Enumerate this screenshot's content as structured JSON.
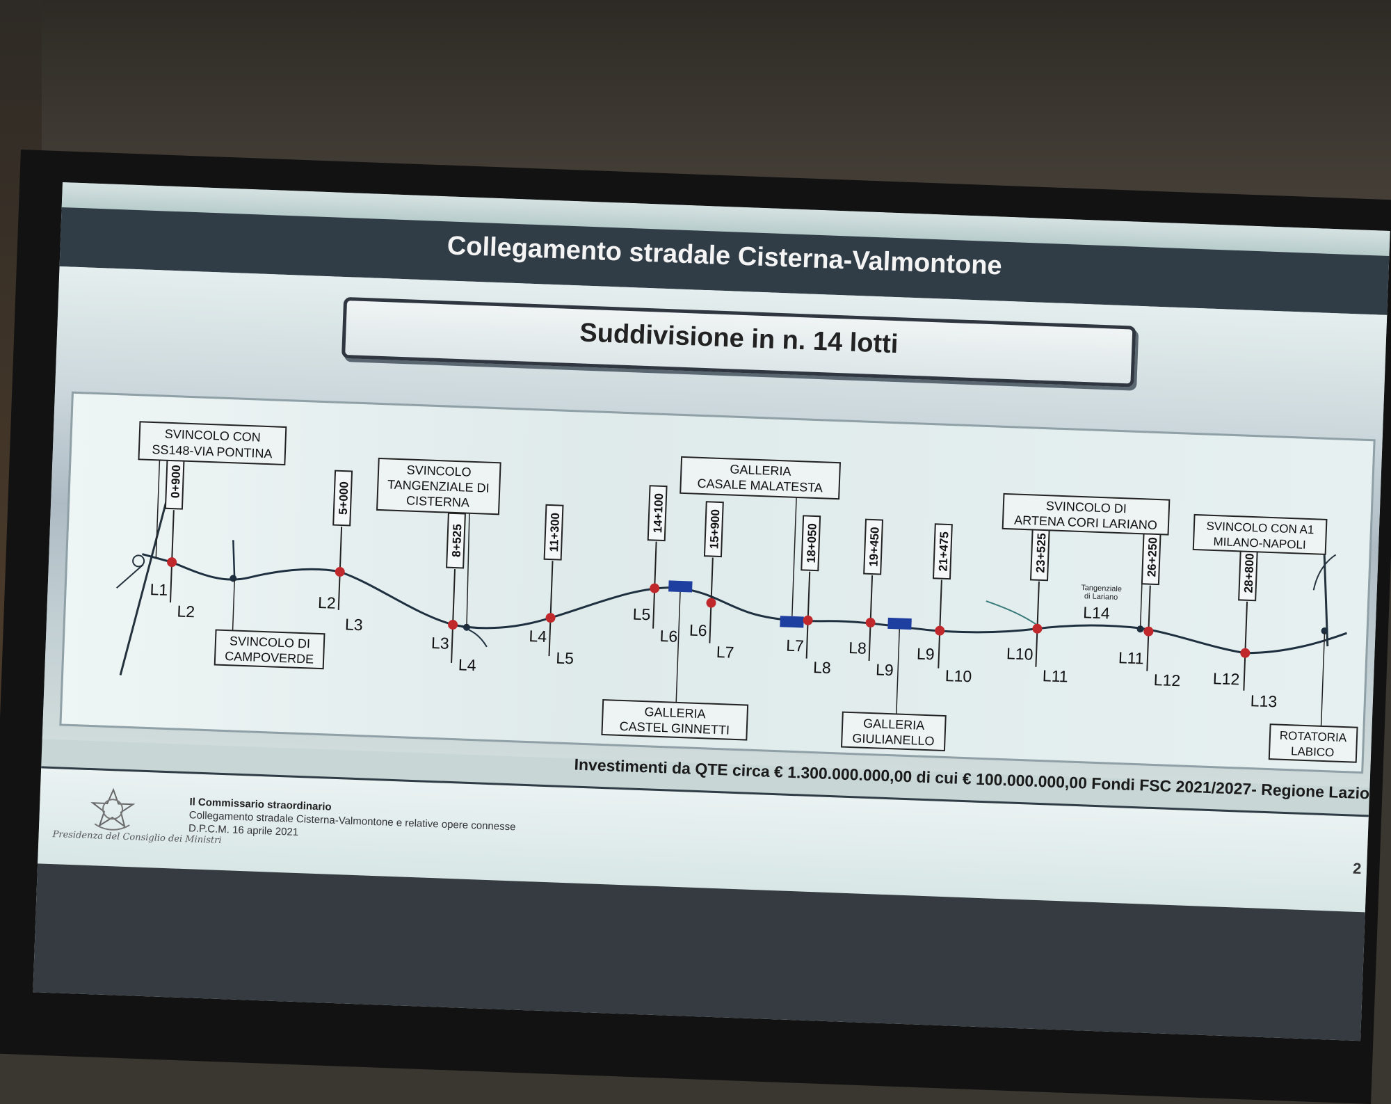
{
  "title": "Collegamento stradale Cisterna-Valmontone",
  "subtitle": "Suddivisione in n. 14 lotti",
  "investment": "Investimenti da QTE circa € 1.300.000.000,00 di cui € 100.000.000,00 Fondi FSC 2021/2027- Regione Lazio",
  "footer": {
    "line1": "Il Commissario straordinario",
    "line2": "Collegamento stradale Cisterna-Valmontone e relative opere connesse",
    "line3": "D.P.C.M. 16 aprile 2021",
    "page": "2",
    "signature": "Presidenza del Consiglio dei Ministri"
  },
  "colors": {
    "header": "#303c46",
    "junction": "#c0282c",
    "tunnel": "#1f3fa0",
    "road": "#1e3040"
  },
  "chainages": [
    "0+900",
    "5+000",
    "8+525",
    "11+300",
    "14+100",
    "15+900",
    "18+050",
    "19+450",
    "21+475",
    "23+525",
    "26+250",
    "28+800"
  ],
  "callouts": [
    {
      "line1": "SVINCOLO CON",
      "line2": "SS148-VIA PONTINA"
    },
    {
      "line1": "SVINCOLO DI",
      "line2": "CAMPOVERDE"
    },
    {
      "line1": "SVINCOLO",
      "line2": "TANGENZIALE DI",
      "line3": "CISTERNA"
    },
    {
      "line1": "GALLERIA",
      "line2": "CASALE MALATESTA"
    },
    {
      "line1": "GALLERIA",
      "line2": "CASTEL GINNETTI"
    },
    {
      "line1": "GALLERIA",
      "line2": "GIULIANELLO"
    },
    {
      "line1": "SVINCOLO DI",
      "line2": "ARTENA CORI LARIANO"
    },
    {
      "line1": "SVINCOLO CON A1",
      "line2": "MILANO-NAPOLI"
    },
    {
      "line1": "ROTATORIA",
      "line2": "LABICO"
    }
  ],
  "tangenziale": {
    "line1": "Tangenziale",
    "line2": "di Lariano"
  },
  "lots": {
    "left": [
      "L1",
      "L2",
      "L3",
      "L4",
      "L5",
      "L6",
      "L7",
      "L8",
      "L9",
      "L10",
      "L11",
      "L12"
    ],
    "right": [
      "L2",
      "L3",
      "L4",
      "L5",
      "L6",
      "L7",
      "L8",
      "L9",
      "L10",
      "L11",
      "L12",
      "L13"
    ],
    "l14": "L14"
  }
}
